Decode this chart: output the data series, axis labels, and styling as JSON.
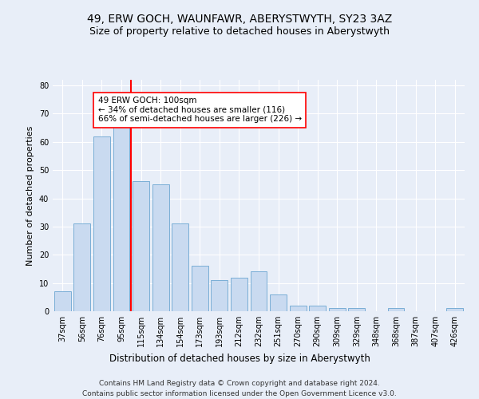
{
  "title": "49, ERW GOCH, WAUNFAWR, ABERYSTWYTH, SY23 3AZ",
  "subtitle": "Size of property relative to detached houses in Aberystwyth",
  "xlabel": "Distribution of detached houses by size in Aberystwyth",
  "ylabel": "Number of detached properties",
  "categories": [
    "37sqm",
    "56sqm",
    "76sqm",
    "95sqm",
    "115sqm",
    "134sqm",
    "154sqm",
    "173sqm",
    "193sqm",
    "212sqm",
    "232sqm",
    "251sqm",
    "270sqm",
    "290sqm",
    "309sqm",
    "329sqm",
    "348sqm",
    "368sqm",
    "387sqm",
    "407sqm",
    "426sqm"
  ],
  "values": [
    7,
    31,
    62,
    66,
    46,
    45,
    31,
    16,
    11,
    12,
    14,
    6,
    2,
    2,
    1,
    1,
    0,
    1,
    0,
    0,
    1
  ],
  "bar_color": "#c9daf0",
  "bar_edge_color": "#7aaed6",
  "vline_color": "red",
  "vline_x_index": 3,
  "annotation_text": "49 ERW GOCH: 100sqm\n← 34% of detached houses are smaller (116)\n66% of semi-detached houses are larger (226) →",
  "annotation_box_color": "white",
  "annotation_box_edge_color": "red",
  "ylim": [
    0,
    82
  ],
  "yticks": [
    0,
    10,
    20,
    30,
    40,
    50,
    60,
    70,
    80
  ],
  "footer": "Contains HM Land Registry data © Crown copyright and database right 2024.\nContains public sector information licensed under the Open Government Licence v3.0.",
  "background_color": "#e8eef8",
  "grid_color": "#ffffff",
  "title_fontsize": 10,
  "subtitle_fontsize": 9,
  "ylabel_fontsize": 8,
  "xlabel_fontsize": 8.5,
  "tick_fontsize": 7,
  "footer_fontsize": 6.5,
  "annotation_fontsize": 7.5
}
